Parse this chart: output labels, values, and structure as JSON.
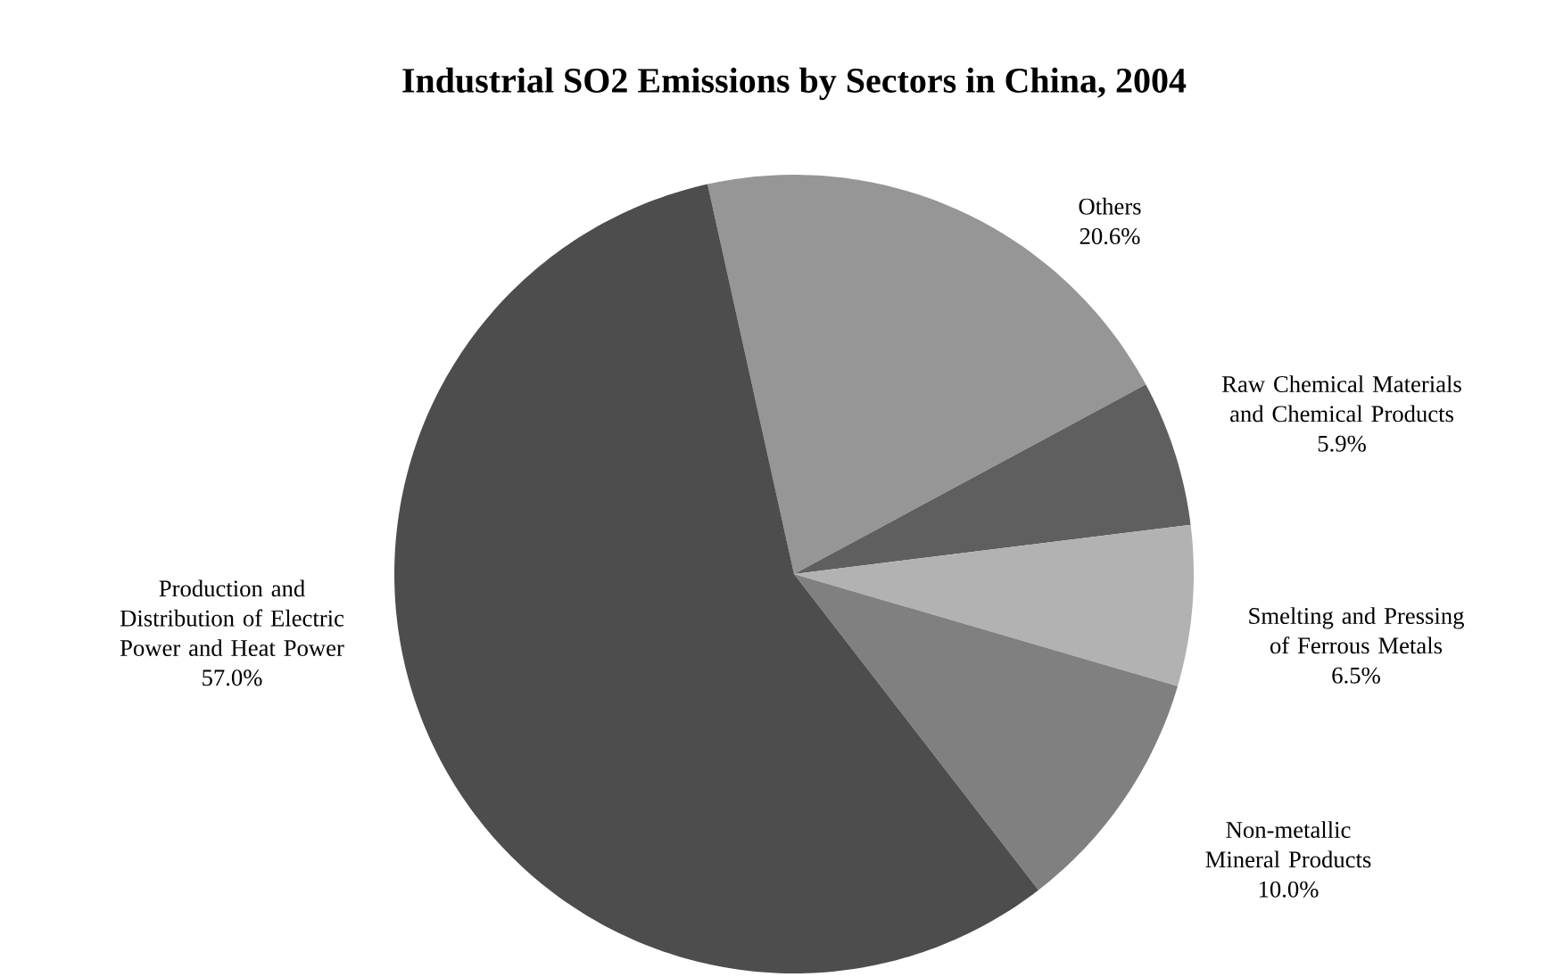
{
  "chart_data": {
    "type": "pie",
    "title": "Industrial SO2 Emissions by Sectors in China, 2004",
    "categories": [
      "Others",
      "Raw Chemical Materials and Chemical Products",
      "Smelting and Pressing of Ferrous Metals",
      "Non-metallic Mineral Products",
      "Production and Distribution of Electric Power and Heat Power"
    ],
    "values": [
      20.6,
      5.9,
      6.5,
      10.0,
      57.0
    ],
    "value_labels": [
      "20.6%",
      "5.9%",
      "6.5%",
      "10.0%",
      "57.0%"
    ],
    "colors": [
      "#969696",
      "#5f5f5f",
      "#b2b2b2",
      "#808080",
      "#4d4d4d"
    ]
  }
}
